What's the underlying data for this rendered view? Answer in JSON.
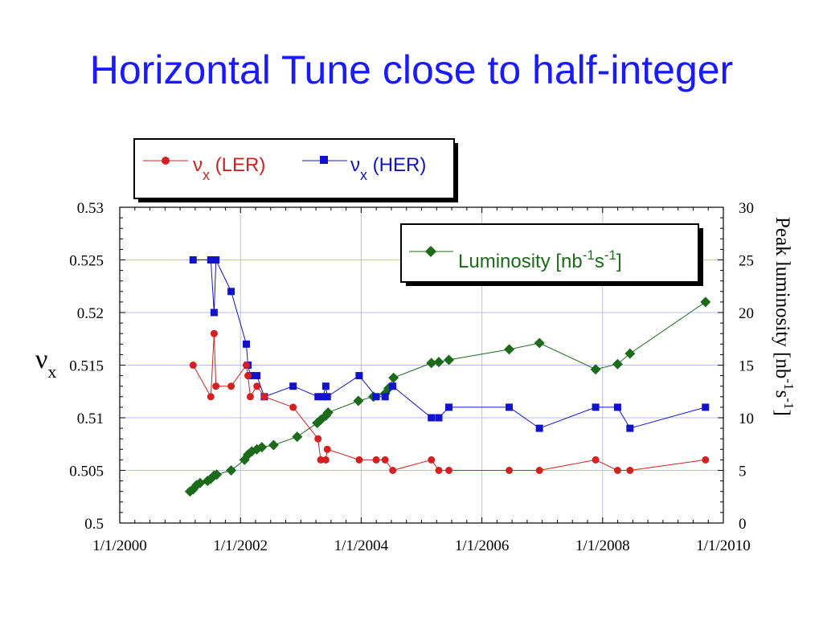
{
  "slide": {
    "title": "Horizontal Tune close to half-integer"
  },
  "chart_data": {
    "type": "line",
    "x_axis": {
      "label": "",
      "range": [
        "2000-01-01",
        "2010-01-01"
      ],
      "ticks": [
        "1/1/2000",
        "1/1/2002",
        "1/1/2004",
        "1/1/2006",
        "1/1/2008",
        "1/1/2010"
      ]
    },
    "y_axis_left": {
      "label_main": "ν",
      "label_sub": "x",
      "range": [
        0.5,
        0.53
      ],
      "ticks": [
        "0.5",
        "0.505",
        "0.51",
        "0.515",
        "0.52",
        "0.525",
        "0.53"
      ]
    },
    "y_axis_right": {
      "label": "Peak luminosity [nb",
      "label_sup1": "-1",
      "label_mid": "s",
      "label_sup2": "-1",
      "label_end": "]",
      "range": [
        0,
        30
      ],
      "ticks": [
        "0",
        "5",
        "10",
        "15",
        "20",
        "25",
        "30"
      ]
    },
    "grid": true,
    "legends": {
      "tune": {
        "ler_prefix": "ν",
        "ler_sub": "x",
        "ler_suffix": " (LER)",
        "her_prefix": "ν",
        "her_sub": "x",
        "her_suffix": " (HER)"
      },
      "luminosity": {
        "text": "Luminosity [nb",
        "sup1": "-1",
        "mid": "s",
        "sup2": "-1",
        "end": "]"
      }
    },
    "colors": {
      "ler": "#d42020",
      "her": "#1212cc",
      "lum": "#1b6b1b",
      "grid": "#b8bef0"
    },
    "series": [
      {
        "name": "νx (LER)",
        "axis": "left",
        "marker": "circle",
        "points": [
          [
            "2001-03-20",
            0.515
          ],
          [
            "2001-07-05",
            0.512
          ],
          [
            "2001-07-25",
            0.518
          ],
          [
            "2001-08-05",
            0.513
          ],
          [
            "2001-11-05",
            0.513
          ],
          [
            "2002-02-05",
            0.515
          ],
          [
            "2002-02-15",
            0.514
          ],
          [
            "2002-03-01",
            0.512
          ],
          [
            "2002-04-10",
            0.513
          ],
          [
            "2002-05-25",
            0.512
          ],
          [
            "2002-11-15",
            0.511
          ],
          [
            "2003-04-15",
            0.508
          ],
          [
            "2003-05-01",
            0.506
          ],
          [
            "2003-06-01",
            0.506
          ],
          [
            "2003-06-10",
            0.507
          ],
          [
            "2003-12-20",
            0.506
          ],
          [
            "2004-04-01",
            0.506
          ],
          [
            "2004-05-25",
            0.506
          ],
          [
            "2004-07-10",
            0.505
          ],
          [
            "2005-03-01",
            0.506
          ],
          [
            "2005-04-15",
            0.505
          ],
          [
            "2005-06-15",
            0.505
          ],
          [
            "2006-06-15",
            0.505
          ],
          [
            "2006-12-15",
            0.505
          ],
          [
            "2007-11-20",
            0.506
          ],
          [
            "2008-04-01",
            0.505
          ],
          [
            "2008-06-15",
            0.505
          ],
          [
            "2009-09-15",
            0.506
          ]
        ]
      },
      {
        "name": "νx (HER)",
        "axis": "left",
        "marker": "square",
        "points": [
          [
            "2001-03-20",
            0.525
          ],
          [
            "2001-07-05",
            0.525
          ],
          [
            "2001-07-25",
            0.52
          ],
          [
            "2001-08-05",
            0.525
          ],
          [
            "2001-11-05",
            0.522
          ],
          [
            "2002-02-05",
            0.517
          ],
          [
            "2002-02-15",
            0.515
          ],
          [
            "2002-03-01",
            0.514
          ],
          [
            "2002-04-10",
            0.514
          ],
          [
            "2002-05-25",
            0.512
          ],
          [
            "2002-11-15",
            0.513
          ],
          [
            "2003-04-15",
            0.512
          ],
          [
            "2003-05-15",
            0.512
          ],
          [
            "2003-06-01",
            0.513
          ],
          [
            "2003-06-10",
            0.512
          ],
          [
            "2003-12-20",
            0.514
          ],
          [
            "2004-04-01",
            0.512
          ],
          [
            "2004-05-25",
            0.512
          ],
          [
            "2004-07-10",
            0.513
          ],
          [
            "2005-03-01",
            0.51
          ],
          [
            "2005-04-15",
            0.51
          ],
          [
            "2005-06-15",
            0.511
          ],
          [
            "2006-06-15",
            0.511
          ],
          [
            "2006-12-15",
            0.509
          ],
          [
            "2007-11-20",
            0.511
          ],
          [
            "2008-04-01",
            0.511
          ],
          [
            "2008-06-15",
            0.509
          ],
          [
            "2009-09-15",
            0.511
          ]
        ]
      },
      {
        "name": "Luminosity [nb-1s-1]",
        "axis": "right",
        "marker": "diamond",
        "points": [
          [
            "2001-03-01",
            3.0
          ],
          [
            "2001-03-20",
            3.2
          ],
          [
            "2001-04-10",
            3.6
          ],
          [
            "2001-05-01",
            3.8
          ],
          [
            "2001-06-15",
            4.0
          ],
          [
            "2001-07-05",
            4.2
          ],
          [
            "2001-07-25",
            4.5
          ],
          [
            "2001-08-10",
            4.6
          ],
          [
            "2001-11-05",
            5.0
          ],
          [
            "2002-01-25",
            6.0
          ],
          [
            "2002-02-15",
            6.5
          ],
          [
            "2002-03-10",
            6.8
          ],
          [
            "2002-04-10",
            7.0
          ],
          [
            "2002-05-10",
            7.2
          ],
          [
            "2002-07-20",
            7.4
          ],
          [
            "2002-12-10",
            8.2
          ],
          [
            "2003-04-10",
            9.5
          ],
          [
            "2003-05-01",
            9.8
          ],
          [
            "2003-06-01",
            10.2
          ],
          [
            "2003-06-15",
            10.5
          ],
          [
            "2003-12-15",
            11.6
          ],
          [
            "2004-03-15",
            12.0
          ],
          [
            "2004-05-25",
            12.3
          ],
          [
            "2004-06-15",
            12.8
          ],
          [
            "2004-07-15",
            13.8
          ],
          [
            "2005-03-01",
            15.2
          ],
          [
            "2005-04-15",
            15.3
          ],
          [
            "2005-06-15",
            15.5
          ],
          [
            "2006-06-15",
            16.5
          ],
          [
            "2006-12-15",
            17.1
          ],
          [
            "2007-11-20",
            14.6
          ],
          [
            "2008-04-01",
            15.1
          ],
          [
            "2008-06-15",
            16.1
          ],
          [
            "2009-09-15",
            21.0
          ]
        ]
      }
    ]
  }
}
